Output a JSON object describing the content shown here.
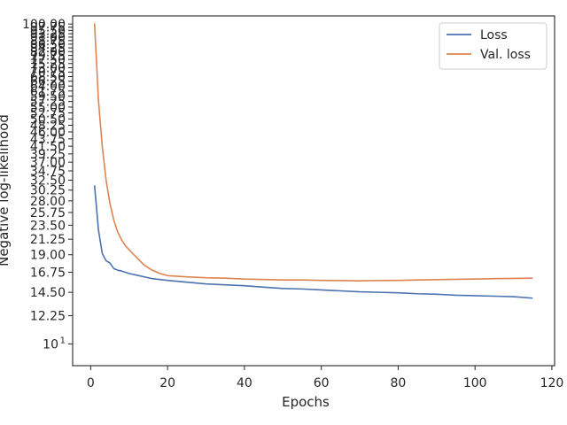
{
  "chart_data": {
    "type": "line",
    "xlabel": "Epochs",
    "ylabel": "Negative log-likelihood",
    "yscale": "log",
    "xlim": [
      -4.7,
      120.7
    ],
    "ylim": [
      8.55,
      106
    ],
    "grid": false,
    "legend_position": "top-right",
    "x_ticks": [
      0,
      20,
      40,
      60,
      80,
      100,
      120
    ],
    "y_ticks": [
      {
        "value": 10,
        "label": "10",
        "superscript": "1"
      },
      {
        "value": 12.25,
        "label": "12.25"
      },
      {
        "value": 14.5,
        "label": "14.50"
      },
      {
        "value": 16.75,
        "label": "16.75"
      },
      {
        "value": 19.0,
        "label": "19.00"
      },
      {
        "value": 21.25,
        "label": "21.25"
      },
      {
        "value": 23.5,
        "label": "23.50"
      },
      {
        "value": 25.75,
        "label": "25.75"
      },
      {
        "value": 28.0,
        "label": "28.00"
      },
      {
        "value": 30.25,
        "label": "30.25"
      },
      {
        "value": 32.5,
        "label": "32.50"
      },
      {
        "value": 34.75,
        "label": "34.75"
      },
      {
        "value": 37.0,
        "label": "37.00"
      },
      {
        "value": 39.25,
        "label": "39.25"
      },
      {
        "value": 41.5,
        "label": "41.50"
      },
      {
        "value": 43.75,
        "label": "43.75"
      },
      {
        "value": 46.0,
        "label": "46.00"
      },
      {
        "value": 48.25,
        "label": "48.25"
      },
      {
        "value": 50.5,
        "label": "50.50"
      },
      {
        "value": 52.75,
        "label": "52.75"
      },
      {
        "value": 55.0,
        "label": "55.00"
      },
      {
        "value": 57.25,
        "label": "57.25"
      },
      {
        "value": 59.5,
        "label": "59.50"
      },
      {
        "value": 61.75,
        "label": "61.75"
      },
      {
        "value": 64.0,
        "label": "64.00"
      },
      {
        "value": 66.25,
        "label": "66.25"
      },
      {
        "value": 68.5,
        "label": "68.50"
      },
      {
        "value": 70.75,
        "label": "70.75"
      },
      {
        "value": 73.0,
        "label": "73.00"
      },
      {
        "value": 75.25,
        "label": "75.25"
      },
      {
        "value": 77.5,
        "label": "77.50"
      },
      {
        "value": 79.75,
        "label": "79.75"
      },
      {
        "value": 82.0,
        "label": "82.00"
      },
      {
        "value": 84.25,
        "label": "84.25"
      },
      {
        "value": 86.5,
        "label": "86.50"
      },
      {
        "value": 88.75,
        "label": "88.75"
      },
      {
        "value": 91.0,
        "label": "91.00"
      },
      {
        "value": 93.25,
        "label": "93.25"
      },
      {
        "value": 95.5,
        "label": "95.50"
      },
      {
        "value": 97.75,
        "label": "97.75"
      },
      {
        "value": 100.0,
        "label": "100.00"
      }
    ],
    "series": [
      {
        "name": "Loss",
        "color": "#4c72b0",
        "points": [
          [
            1,
            31.3
          ],
          [
            2,
            22.8
          ],
          [
            3,
            19.2
          ],
          [
            4,
            18.2
          ],
          [
            5,
            17.9
          ],
          [
            6,
            17.2
          ],
          [
            7,
            17.0
          ],
          [
            8,
            16.9
          ],
          [
            10,
            16.6
          ],
          [
            12,
            16.4
          ],
          [
            14,
            16.2
          ],
          [
            16,
            16.0
          ],
          [
            20,
            15.8
          ],
          [
            25,
            15.6
          ],
          [
            30,
            15.4
          ],
          [
            35,
            15.3
          ],
          [
            40,
            15.2
          ],
          [
            45,
            15.05
          ],
          [
            50,
            14.9
          ],
          [
            55,
            14.85
          ],
          [
            60,
            14.75
          ],
          [
            65,
            14.65
          ],
          [
            70,
            14.55
          ],
          [
            75,
            14.5
          ],
          [
            80,
            14.45
          ],
          [
            85,
            14.35
          ],
          [
            90,
            14.3
          ],
          [
            95,
            14.2
          ],
          [
            100,
            14.15
          ],
          [
            105,
            14.1
          ],
          [
            110,
            14.05
          ],
          [
            115,
            13.9
          ]
        ]
      },
      {
        "name": "Val. loss",
        "color": "#dd8452",
        "points": [
          [
            1,
            100.5
          ],
          [
            2,
            58.0
          ],
          [
            3,
            41.5
          ],
          [
            4,
            32.5
          ],
          [
            5,
            27.5
          ],
          [
            6,
            24.4
          ],
          [
            7,
            22.4
          ],
          [
            8,
            21.2
          ],
          [
            9,
            20.3
          ],
          [
            10,
            19.7
          ],
          [
            12,
            18.6
          ],
          [
            14,
            17.6
          ],
          [
            16,
            17.0
          ],
          [
            18,
            16.6
          ],
          [
            20,
            16.35
          ],
          [
            25,
            16.2
          ],
          [
            30,
            16.1
          ],
          [
            35,
            16.05
          ],
          [
            40,
            15.95
          ],
          [
            45,
            15.9
          ],
          [
            50,
            15.85
          ],
          [
            55,
            15.85
          ],
          [
            60,
            15.8
          ],
          [
            65,
            15.78
          ],
          [
            70,
            15.75
          ],
          [
            75,
            15.78
          ],
          [
            80,
            15.8
          ],
          [
            85,
            15.85
          ],
          [
            90,
            15.88
          ],
          [
            95,
            15.92
          ],
          [
            100,
            15.95
          ],
          [
            105,
            16.0
          ],
          [
            110,
            16.02
          ],
          [
            115,
            16.05
          ]
        ]
      }
    ]
  }
}
